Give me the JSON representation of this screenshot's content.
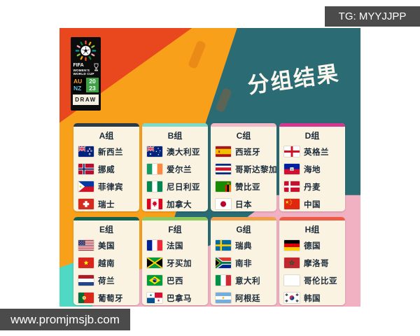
{
  "badges": {
    "tg": "TG: MYYJJPP",
    "website": "www.promjmsjb.com"
  },
  "poster": {
    "title": "分组结果",
    "logo": {
      "fifa": "FIFA",
      "womens": "WOMEN'S",
      "worldcup": "WORLD CUP",
      "au": "AU",
      "nz": "NZ",
      "year_top": "20",
      "year_bottom": "23",
      "draw": "DRAW"
    },
    "groups": [
      {
        "label": "A组",
        "accent": "#2b3a47",
        "teams": [
          {
            "name": "新西兰",
            "flag": "flag-new-zealand"
          },
          {
            "name": "挪威",
            "flag": "flag-norway"
          },
          {
            "name": "菲律宾",
            "flag": "flag-philippines"
          },
          {
            "name": "瑞士",
            "flag": "flag-switzerland"
          }
        ]
      },
      {
        "label": "B组",
        "accent": "#7fd9c9",
        "teams": [
          {
            "name": "澳大利亚",
            "flag": "flag-australia"
          },
          {
            "name": "爱尔兰",
            "flag": "flag-ireland"
          },
          {
            "name": "尼日利亚",
            "flag": "flag-nigeria"
          },
          {
            "name": "加拿大",
            "flag": "flag-canada"
          }
        ]
      },
      {
        "label": "C组",
        "accent": "#f2b8c8",
        "teams": [
          {
            "name": "西班牙",
            "flag": "flag-spain"
          },
          {
            "name": "哥斯达黎加",
            "flag": "flag-costa-rica"
          },
          {
            "name": "赞比亚",
            "flag": "flag-zambia"
          },
          {
            "name": "日本",
            "flag": "flag-japan"
          }
        ]
      },
      {
        "label": "D组",
        "accent": "#d6368f",
        "teams": [
          {
            "name": "英格兰",
            "flag": "flag-england"
          },
          {
            "name": "海地",
            "flag": "flag-haiti"
          },
          {
            "name": "丹麦",
            "flag": "flag-denmark"
          },
          {
            "name": "中国",
            "flag": "flag-china"
          }
        ]
      },
      {
        "label": "E组",
        "accent": "#14604f",
        "teams": [
          {
            "name": "美国",
            "flag": "flag-usa"
          },
          {
            "name": "越南",
            "flag": "flag-vietnam"
          },
          {
            "name": "荷兰",
            "flag": "flag-netherlands"
          },
          {
            "name": "葡萄牙",
            "flag": "flag-portugal"
          }
        ]
      },
      {
        "label": "F组",
        "accent": "#8ccb5e",
        "teams": [
          {
            "name": "法国",
            "flag": "flag-france"
          },
          {
            "name": "牙买加",
            "flag": "flag-jamaica"
          },
          {
            "name": "巴西",
            "flag": "flag-brazil"
          },
          {
            "name": "巴拿马",
            "flag": "flag-panama"
          }
        ]
      },
      {
        "label": "G组",
        "accent": "#f0a04b",
        "teams": [
          {
            "name": "瑞典",
            "flag": "flag-sweden"
          },
          {
            "name": "南非",
            "flag": "flag-south-africa"
          },
          {
            "name": "意大利",
            "flag": "flag-italy"
          },
          {
            "name": "阿根廷",
            "flag": "flag-argentina"
          }
        ]
      },
      {
        "label": "H组",
        "accent": "#ee5a43",
        "teams": [
          {
            "name": "德国",
            "flag": "flag-germany"
          },
          {
            "name": "摩洛哥",
            "flag": "flag-morocco"
          },
          {
            "name": "哥伦比亚",
            "flag": "flag-colombia"
          },
          {
            "name": "韩国",
            "flag": "flag-south-korea"
          }
        ]
      }
    ],
    "colors": {
      "red_orange": "#e9481e",
      "orange": "#f9a01b",
      "teal": "#2a6b74",
      "pink": "#f2b0c3",
      "turquoise": "#4fd8c4",
      "card": "#faf3e2",
      "ink": "#1c2c3a",
      "badge_gray": "#4b4b4b"
    }
  }
}
